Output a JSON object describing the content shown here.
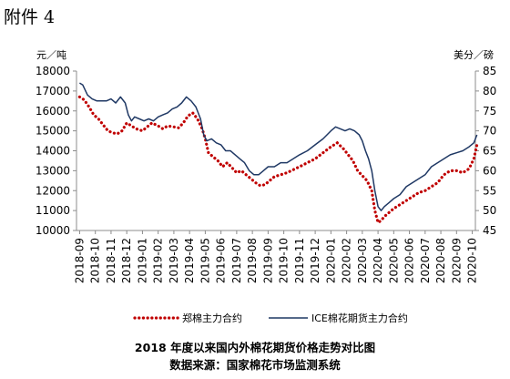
{
  "header": {
    "attachment_label": "附件 4"
  },
  "chart_data": {
    "type": "line",
    "title": "2018 年度以来国内外棉花期货价格走势对比图",
    "subtitle": "数据来源：国家棉花市场监测系统",
    "y_left": {
      "label": "元／吨",
      "min": 10000,
      "max": 18000,
      "ticks": [
        10000,
        11000,
        12000,
        13000,
        14000,
        15000,
        16000,
        17000,
        18000
      ]
    },
    "y_right": {
      "label": "美分／磅",
      "min": 45,
      "max": 85,
      "ticks": [
        45,
        50,
        55,
        60,
        65,
        70,
        75,
        80,
        85
      ]
    },
    "categories": [
      "2018-09",
      "2018-10",
      "2018-11",
      "2018-12",
      "2019-01",
      "2019-02",
      "2019-03",
      "2019-04",
      "2019-05",
      "2019-06",
      "2019-07",
      "2019-08",
      "2019-09",
      "2019-10",
      "2019-11",
      "2019-12",
      "2020-01",
      "2020-02",
      "2020-03",
      "2020-04",
      "2020-05",
      "2020-06",
      "2020-07",
      "2020-08",
      "2020-09",
      "2020-10"
    ],
    "grid": false,
    "legend": "bottom",
    "series": [
      {
        "name": "郑棉主力合约",
        "axis": "left",
        "style": "dotted",
        "color": "#c00000",
        "x": [
          0,
          0.3,
          0.6,
          0.9,
          1.2,
          1.5,
          1.8,
          2.1,
          2.4,
          2.7,
          3.0,
          3.3,
          3.6,
          4.0,
          4.3,
          4.6,
          5.0,
          5.3,
          5.6,
          6.0,
          6.3,
          6.6,
          6.9,
          7.2,
          7.5,
          7.8,
          8.0,
          8.2,
          8.5,
          8.8,
          9.1,
          9.4,
          9.7,
          10.0,
          10.3,
          10.6,
          10.9,
          11.2,
          11.5,
          11.8,
          12.1,
          12.4,
          12.8,
          13.2,
          13.6,
          14.0,
          14.5,
          15.0,
          15.5,
          16.0,
          16.4,
          16.8,
          17.1,
          17.4,
          17.7,
          18.0,
          18.3,
          18.6,
          18.8,
          19.0,
          19.2,
          19.4,
          19.7,
          20.0,
          20.4,
          20.8,
          21.2,
          21.6,
          22.0,
          22.4,
          22.8,
          23.2,
          23.6,
          24.0,
          24.4,
          24.8,
          25.1,
          25.3
        ],
        "values": [
          16700,
          16550,
          16200,
          15800,
          15600,
          15300,
          15000,
          14900,
          14850,
          15000,
          15400,
          15250,
          15100,
          15000,
          15200,
          15400,
          15250,
          15100,
          15250,
          15200,
          15150,
          15400,
          15750,
          15900,
          15600,
          15100,
          14600,
          13900,
          13700,
          13500,
          13200,
          13400,
          13150,
          12900,
          13000,
          12800,
          12600,
          12400,
          12250,
          12300,
          12500,
          12700,
          12800,
          12900,
          13050,
          13200,
          13400,
          13600,
          13900,
          14200,
          14400,
          14100,
          13800,
          13500,
          13000,
          12750,
          12500,
          12000,
          11000,
          10400,
          10500,
          10700,
          10900,
          11100,
          11300,
          11500,
          11700,
          11900,
          12000,
          12200,
          12400,
          12800,
          13000,
          13000,
          12900,
          13100,
          13600,
          14300
        ]
      },
      {
        "name": "ICE棉花期货主力合约",
        "axis": "right",
        "style": "solid",
        "color": "#1f3864",
        "x": [
          0,
          0.2,
          0.5,
          0.8,
          1.1,
          1.4,
          1.7,
          2.0,
          2.3,
          2.6,
          2.9,
          3.1,
          3.3,
          3.5,
          3.8,
          4.1,
          4.4,
          4.7,
          5.0,
          5.3,
          5.6,
          5.9,
          6.2,
          6.5,
          6.8,
          7.1,
          7.4,
          7.7,
          7.9,
          8.1,
          8.4,
          8.7,
          9.0,
          9.3,
          9.6,
          9.9,
          10.2,
          10.5,
          10.8,
          11.1,
          11.4,
          11.7,
          12.0,
          12.4,
          12.8,
          13.2,
          13.6,
          14.0,
          14.5,
          15.0,
          15.5,
          16.0,
          16.3,
          16.6,
          16.9,
          17.2,
          17.5,
          17.8,
          18.0,
          18.2,
          18.4,
          18.6,
          18.8,
          19.0,
          19.2,
          19.4,
          19.7,
          20.0,
          20.4,
          20.8,
          21.2,
          21.6,
          22.0,
          22.4,
          22.8,
          23.2,
          23.6,
          24.0,
          24.4,
          24.8,
          25.1,
          25.3
        ],
        "values": [
          82,
          81.5,
          79,
          78,
          77.5,
          77.5,
          77.5,
          78,
          77,
          78.5,
          77,
          74,
          72.5,
          73.5,
          73,
          72.5,
          73,
          72.5,
          73.5,
          74,
          74.5,
          75.5,
          76,
          77,
          78.5,
          77.5,
          76,
          73,
          69,
          67.5,
          68,
          67,
          66.5,
          65,
          65,
          64,
          63,
          62,
          60,
          59,
          59,
          60,
          61,
          61,
          62,
          62,
          63,
          64,
          65,
          66.5,
          68,
          70,
          71,
          70.5,
          70,
          70.5,
          70,
          69,
          67.5,
          65,
          63,
          60,
          55,
          51,
          50,
          51,
          52,
          53,
          54,
          56,
          57,
          58,
          59,
          61,
          62,
          63,
          64,
          64.5,
          65,
          66,
          67,
          69
        ]
      }
    ]
  }
}
